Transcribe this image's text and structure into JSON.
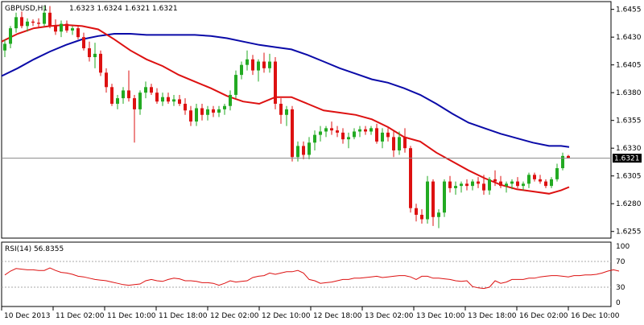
{
  "header": {
    "symbol": "GBPUSD,H1",
    "ohlc": "1.6323 1.6324 1.6321 1.6321"
  },
  "rsi": {
    "label": "RSI(14) 56.8355",
    "levels": [
      30,
      70
    ],
    "scale_labels": [
      "100",
      "70",
      "30",
      "0"
    ],
    "values": [
      49,
      55,
      59,
      58,
      57,
      57,
      56,
      56,
      60,
      56,
      53,
      52,
      50,
      47,
      46,
      44,
      42,
      41,
      40,
      38,
      36,
      34,
      33,
      34,
      35,
      40,
      42,
      40,
      39,
      42,
      44,
      43,
      40,
      40,
      39,
      37,
      37,
      36,
      33,
      36,
      40,
      38,
      39,
      40,
      45,
      47,
      48,
      52,
      50,
      52,
      54,
      54,
      56,
      52,
      42,
      40,
      36,
      37,
      38,
      40,
      42,
      42,
      44,
      44,
      45,
      46,
      47,
      45,
      46,
      47,
      48,
      48,
      46,
      42,
      47,
      47,
      44,
      44,
      43,
      42,
      40,
      39,
      40,
      31,
      29,
      28,
      30,
      40,
      36,
      38,
      42,
      42,
      42,
      44,
      44,
      46,
      47,
      48,
      48,
      47,
      46,
      48,
      48,
      49,
      49,
      50,
      52,
      55,
      57,
      55
    ]
  },
  "chart_data": {
    "type": "candlestick",
    "title": "GBPUSD,H1",
    "current_price": "1.6321",
    "y_ticks": [
      "1.6455",
      "1.6430",
      "1.6405",
      "1.6380",
      "1.6355",
      "1.6330",
      "1.6305",
      "1.6280",
      "1.6255"
    ],
    "x_ticks": [
      "10 Dec 2013",
      "11 Dec 02:00",
      "11 Dec 10:00",
      "11 Dec 18:00",
      "12 Dec 02:00",
      "12 Dec 10:00",
      "12 Dec 18:00",
      "13 Dec 02:00",
      "13 Dec 10:00",
      "13 Dec 18:00",
      "16 Dec 02:00",
      "16 Dec 10:00"
    ],
    "ylim": [
      1.6249,
      1.6462
    ],
    "up_color": "#22aa22",
    "down_color": "#dd1111",
    "candles": [
      [
        1.6418,
        1.6428,
        1.6412,
        1.6424
      ],
      [
        1.6424,
        1.644,
        1.642,
        1.6438
      ],
      [
        1.6438,
        1.6452,
        1.6434,
        1.6448
      ],
      [
        1.6448,
        1.6453,
        1.6438,
        1.644
      ],
      [
        1.644,
        1.6447,
        1.6435,
        1.6444
      ],
      [
        1.6444,
        1.6446,
        1.644,
        1.6443
      ],
      [
        1.6443,
        1.6447,
        1.6439,
        1.6442
      ],
      [
        1.6442,
        1.6458,
        1.644,
        1.6452
      ],
      [
        1.6452,
        1.6458,
        1.6438,
        1.644
      ],
      [
        1.644,
        1.6446,
        1.6432,
        1.6435
      ],
      [
        1.6435,
        1.6445,
        1.643,
        1.6442
      ],
      [
        1.6442,
        1.6445,
        1.6434,
        1.6436
      ],
      [
        1.6436,
        1.644,
        1.6432,
        1.6438
      ],
      [
        1.6438,
        1.644,
        1.6428,
        1.643
      ],
      [
        1.643,
        1.6434,
        1.6418,
        1.642
      ],
      [
        1.642,
        1.6426,
        1.6408,
        1.6412
      ],
      [
        1.6412,
        1.6425,
        1.6402,
        1.6415
      ],
      [
        1.6415,
        1.6418,
        1.6395,
        1.6398
      ],
      [
        1.6398,
        1.6402,
        1.638,
        1.6385
      ],
      [
        1.6385,
        1.6388,
        1.6368,
        1.637
      ],
      [
        1.637,
        1.6378,
        1.6365,
        1.6375
      ],
      [
        1.6375,
        1.6385,
        1.637,
        1.6382
      ],
      [
        1.6382,
        1.64,
        1.6372,
        1.6375
      ],
      [
        1.6375,
        1.6378,
        1.6335,
        1.6365
      ],
      [
        1.6365,
        1.6382,
        1.636,
        1.638
      ],
      [
        1.638,
        1.639,
        1.6375,
        1.6385
      ],
      [
        1.6385,
        1.6388,
        1.6378,
        1.638
      ],
      [
        1.638,
        1.6384,
        1.637,
        1.6372
      ],
      [
        1.6372,
        1.638,
        1.6368,
        1.6376
      ],
      [
        1.6376,
        1.638,
        1.637,
        1.6372
      ],
      [
        1.6372,
        1.6378,
        1.6368,
        1.6374
      ],
      [
        1.6374,
        1.6378,
        1.6368,
        1.637
      ],
      [
        1.637,
        1.6375,
        1.636,
        1.6364
      ],
      [
        1.6364,
        1.6368,
        1.635,
        1.6354
      ],
      [
        1.6354,
        1.637,
        1.635,
        1.6366
      ],
      [
        1.6366,
        1.637,
        1.6355,
        1.636
      ],
      [
        1.636,
        1.6368,
        1.6355,
        1.6365
      ],
      [
        1.6365,
        1.6368,
        1.6358,
        1.6362
      ],
      [
        1.6362,
        1.6368,
        1.6358,
        1.6365
      ],
      [
        1.6365,
        1.637,
        1.636,
        1.6368
      ],
      [
        1.6368,
        1.6382,
        1.6364,
        1.6378
      ],
      [
        1.6378,
        1.64,
        1.6375,
        1.6396
      ],
      [
        1.6396,
        1.6408,
        1.6392,
        1.6405
      ],
      [
        1.6405,
        1.6418,
        1.64,
        1.641
      ],
      [
        1.641,
        1.6414,
        1.6396,
        1.64
      ],
      [
        1.64,
        1.641,
        1.639,
        1.6408
      ],
      [
        1.6408,
        1.6416,
        1.6398,
        1.6402
      ],
      [
        1.6402,
        1.6415,
        1.6398,
        1.6408
      ],
      [
        1.6408,
        1.6412,
        1.6365,
        1.637
      ],
      [
        1.637,
        1.6375,
        1.6352,
        1.636
      ],
      [
        1.636,
        1.6368,
        1.635,
        1.6365
      ],
      [
        1.6365,
        1.6368,
        1.6318,
        1.6322
      ],
      [
        1.6322,
        1.6336,
        1.6318,
        1.6332
      ],
      [
        1.6332,
        1.6336,
        1.632,
        1.6324
      ],
      [
        1.6324,
        1.634,
        1.632,
        1.6335
      ],
      [
        1.6335,
        1.6346,
        1.6328,
        1.6342
      ],
      [
        1.6342,
        1.635,
        1.6336,
        1.6345
      ],
      [
        1.6345,
        1.635,
        1.634,
        1.6348
      ],
      [
        1.6348,
        1.6354,
        1.6342,
        1.6346
      ],
      [
        1.6346,
        1.635,
        1.634,
        1.6344
      ],
      [
        1.6344,
        1.6348,
        1.6334,
        1.6338
      ],
      [
        1.6338,
        1.6344,
        1.633,
        1.634
      ],
      [
        1.634,
        1.6348,
        1.6338,
        1.6345
      ],
      [
        1.6345,
        1.635,
        1.634,
        1.6347
      ],
      [
        1.6347,
        1.635,
        1.6342,
        1.6345
      ],
      [
        1.6345,
        1.635,
        1.6342,
        1.6348
      ],
      [
        1.6348,
        1.6352,
        1.6334,
        1.6336
      ],
      [
        1.6336,
        1.6348,
        1.633,
        1.6344
      ],
      [
        1.6344,
        1.6348,
        1.6336,
        1.634
      ],
      [
        1.634,
        1.6345,
        1.6322,
        1.6328
      ],
      [
        1.6328,
        1.6345,
        1.6324,
        1.634
      ],
      [
        1.634,
        1.6348,
        1.6326,
        1.633
      ],
      [
        1.633,
        1.6332,
        1.6272,
        1.6276
      ],
      [
        1.6276,
        1.628,
        1.6264,
        1.627
      ],
      [
        1.627,
        1.6275,
        1.6262,
        1.6266
      ],
      [
        1.6266,
        1.6305,
        1.6262,
        1.63
      ],
      [
        1.63,
        1.6302,
        1.626,
        1.6268
      ],
      [
        1.6268,
        1.6275,
        1.6258,
        1.6272
      ],
      [
        1.6272,
        1.6302,
        1.6268,
        1.63
      ],
      [
        1.63,
        1.6305,
        1.629,
        1.6294
      ],
      [
        1.6294,
        1.63,
        1.6288,
        1.6296
      ],
      [
        1.6296,
        1.63,
        1.629,
        1.6298
      ],
      [
        1.6298,
        1.6302,
        1.6292,
        1.6296
      ],
      [
        1.6296,
        1.6302,
        1.6292,
        1.63
      ],
      [
        1.63,
        1.6304,
        1.6294,
        1.6298
      ],
      [
        1.6298,
        1.6306,
        1.6288,
        1.6292
      ],
      [
        1.6292,
        1.6304,
        1.6288,
        1.6302
      ],
      [
        1.6302,
        1.631,
        1.6296,
        1.63
      ],
      [
        1.63,
        1.6305,
        1.6294,
        1.6296
      ],
      [
        1.6296,
        1.63,
        1.629,
        1.6298
      ],
      [
        1.6298,
        1.6302,
        1.6293,
        1.63
      ],
      [
        1.63,
        1.6304,
        1.6294,
        1.6296
      ],
      [
        1.6296,
        1.63,
        1.6292,
        1.6298
      ],
      [
        1.6298,
        1.6308,
        1.6294,
        1.6306
      ],
      [
        1.6306,
        1.6308,
        1.63,
        1.6302
      ],
      [
        1.6302,
        1.6306,
        1.6298,
        1.63
      ],
      [
        1.63,
        1.6302,
        1.6294,
        1.6296
      ],
      [
        1.6296,
        1.6304,
        1.6294,
        1.6302
      ],
      [
        1.6302,
        1.6316,
        1.63,
        1.6312
      ],
      [
        1.6312,
        1.6326,
        1.631,
        1.6323
      ],
      [
        1.6323,
        1.6324,
        1.6321,
        1.6321
      ]
    ],
    "series": [
      {
        "name": "",
        "color": "#0a0aa8",
        "points": [
          [
            0,
            1.6395
          ],
          [
            20,
            1.6402
          ],
          [
            40,
            1.641
          ],
          [
            60,
            1.6417
          ],
          [
            80,
            1.6423
          ],
          [
            100,
            1.6428
          ],
          [
            120,
            1.6431
          ],
          [
            140,
            1.6433
          ],
          [
            160,
            1.6433
          ],
          [
            180,
            1.6432
          ],
          [
            200,
            1.6432
          ],
          [
            220,
            1.6432
          ],
          [
            240,
            1.6432
          ],
          [
            260,
            1.6431
          ],
          [
            280,
            1.6429
          ],
          [
            300,
            1.6426
          ],
          [
            320,
            1.6423
          ],
          [
            340,
            1.6421
          ],
          [
            360,
            1.6419
          ],
          [
            380,
            1.6414
          ],
          [
            400,
            1.6408
          ],
          [
            420,
            1.6402
          ],
          [
            440,
            1.6397
          ],
          [
            460,
            1.6392
          ],
          [
            480,
            1.6389
          ],
          [
            500,
            1.6384
          ],
          [
            520,
            1.6378
          ],
          [
            540,
            1.637
          ],
          [
            560,
            1.6361
          ],
          [
            580,
            1.6353
          ],
          [
            600,
            1.6348
          ],
          [
            620,
            1.6343
          ],
          [
            640,
            1.6339
          ],
          [
            660,
            1.6335
          ],
          [
            680,
            1.6332
          ],
          [
            695,
            1.6332
          ],
          [
            705,
            1.6331
          ]
        ]
      },
      {
        "name": "",
        "color": "#dd1111",
        "points": [
          [
            0,
            1.6426
          ],
          [
            20,
            1.6433
          ],
          [
            40,
            1.6438
          ],
          [
            60,
            1.644
          ],
          [
            80,
            1.6441
          ],
          [
            100,
            1.644
          ],
          [
            120,
            1.6437
          ],
          [
            140,
            1.6428
          ],
          [
            160,
            1.6418
          ],
          [
            180,
            1.641
          ],
          [
            200,
            1.6404
          ],
          [
            220,
            1.6396
          ],
          [
            240,
            1.639
          ],
          [
            260,
            1.6384
          ],
          [
            280,
            1.6377
          ],
          [
            300,
            1.6372
          ],
          [
            320,
            1.637
          ],
          [
            340,
            1.6376
          ],
          [
            360,
            1.6376
          ],
          [
            380,
            1.637
          ],
          [
            400,
            1.6364
          ],
          [
            420,
            1.6362
          ],
          [
            440,
            1.636
          ],
          [
            460,
            1.6356
          ],
          [
            480,
            1.6349
          ],
          [
            500,
            1.634
          ],
          [
            520,
            1.6336
          ],
          [
            540,
            1.6326
          ],
          [
            560,
            1.6318
          ],
          [
            580,
            1.631
          ],
          [
            600,
            1.6303
          ],
          [
            620,
            1.6297
          ],
          [
            640,
            1.6293
          ],
          [
            660,
            1.6291
          ],
          [
            680,
            1.6289
          ],
          [
            695,
            1.6292
          ],
          [
            705,
            1.6295
          ]
        ]
      }
    ]
  }
}
